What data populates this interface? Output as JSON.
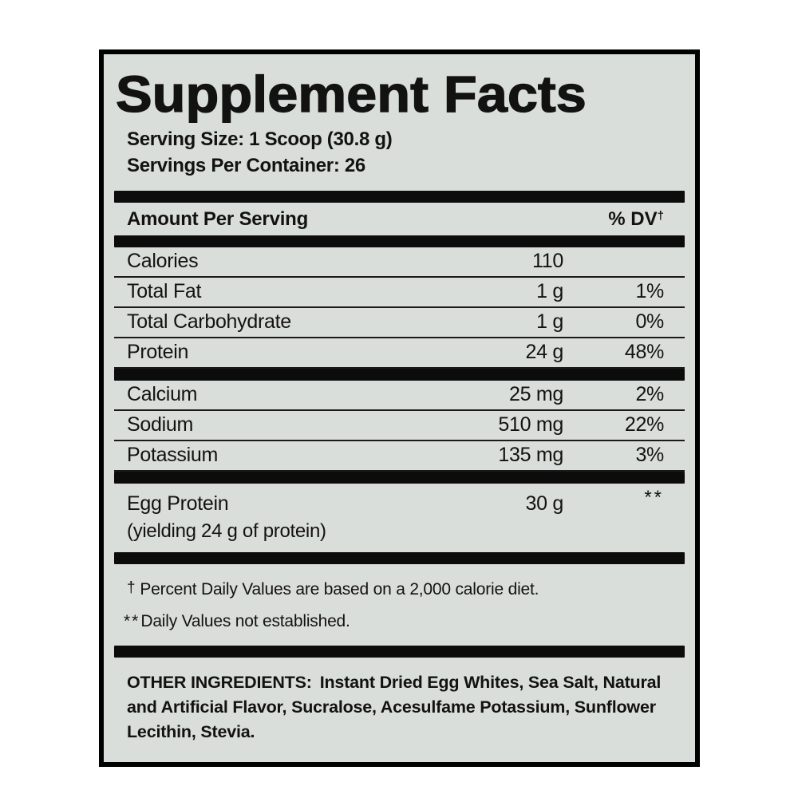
{
  "panel": {
    "title": "Supplement Facts",
    "serving_size": "Serving Size: 1 Scoop (30.8 g)",
    "servings_per_container": "Servings Per Container: 26",
    "header": {
      "amount_label": "Amount Per Serving",
      "dv_label": "% DV",
      "dv_sup": "†"
    },
    "main_rows": [
      {
        "name": "Calories",
        "amount": "110",
        "dv": ""
      },
      {
        "name": "Total Fat",
        "amount": "1 g",
        "dv": "1%"
      },
      {
        "name": "Total Carbohydrate",
        "amount": "1 g",
        "dv": "0%"
      },
      {
        "name": "Protein",
        "amount": "24 g",
        "dv": "48%"
      }
    ],
    "mineral_rows": [
      {
        "name": "Calcium",
        "amount": "25 mg",
        "dv": "2%"
      },
      {
        "name": "Sodium",
        "amount": "510 mg",
        "dv": "22%"
      },
      {
        "name": "Potassium",
        "amount": "135 mg",
        "dv": "3%"
      }
    ],
    "egg_row": {
      "name": "Egg Protein",
      "amount": "30 g",
      "dv": "**",
      "note": "(yielding 24 g of protein)"
    },
    "footnotes": [
      {
        "marker": "†",
        "text": "Percent Daily Values are based on a 2,000 calorie diet."
      },
      {
        "marker": "**",
        "text": "Daily Values not established."
      }
    ],
    "other_ingredients": {
      "label": "OTHER INGREDIENTS:",
      "text": "Instant Dried Egg Whites, Sea Salt, Natural and Artificial Flavor, Sucralose, Acesulfame Potassium, Sunflower Lecithin, Stevia."
    },
    "colors": {
      "page_bg": "#ffffff",
      "panel_bg": "#dadeda",
      "ink": "#121212",
      "bar": "#0c0c0c",
      "rule": "#1a1a1a"
    }
  }
}
